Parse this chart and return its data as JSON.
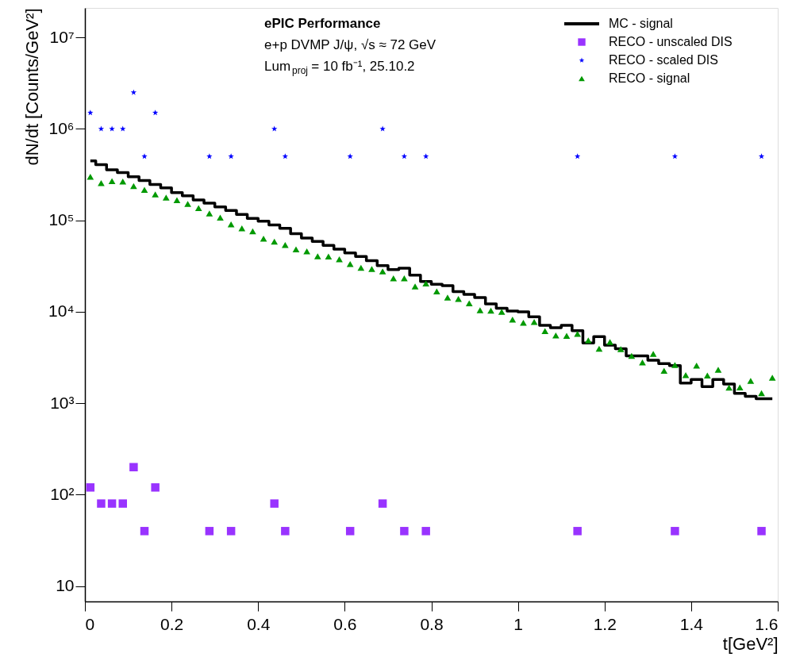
{
  "chart_data": {
    "type": "scatter",
    "xlabel": "t[GeV²]",
    "ylabel": "dN/dt [Counts/GeV²]",
    "annotations": [
      "ePIC Performance",
      "e+p DVMP J/ψ,   √s   ≈ 72 GeV",
      "Lum$_{proj}$ = 10 fb⁻¹, 25.10.2"
    ],
    "log": "y",
    "legend": "top right",
    "xlim": [
      0,
      1.6
    ],
    "xticks": [
      0,
      0.2,
      0.4,
      0.6,
      0.8,
      1,
      1.2,
      1.4,
      1.6
    ],
    "ylim": [
      6.8,
      21000000
    ],
    "yticks": [
      10,
      {
        "value": 100,
        "label": "10²"
      },
      {
        "value": 1000,
        "label": "10³"
      },
      {
        "value": 10000,
        "label": "10⁴"
      },
      {
        "value": 100000,
        "label": "10⁵"
      },
      {
        "value": 1000000,
        "label": "10⁶"
      },
      {
        "value": 10000000,
        "label": "10⁷"
      }
    ],
    "x": [
      0.0125,
      0.0375,
      0.0625,
      0.0875,
      0.1125,
      0.1375,
      0.1625,
      0.1875,
      0.2125,
      0.2375,
      0.2625,
      0.2875,
      0.3125,
      0.3375,
      0.3625,
      0.3875,
      0.4125,
      0.4375,
      0.4625,
      0.4875,
      0.5125,
      0.5375,
      0.5625,
      0.5875,
      0.6125,
      0.6375,
      0.6625,
      0.6875,
      0.7125,
      0.7375,
      0.7625,
      0.7875,
      0.8125,
      0.8375,
      0.8625,
      0.8875,
      0.9125,
      0.9375,
      0.9625,
      0.9875,
      1.0125,
      1.0375,
      1.0625,
      1.0875,
      1.1125,
      1.1375,
      1.1625,
      1.1875,
      1.2125,
      1.2375,
      1.2625,
      1.2875,
      1.3125,
      1.3375,
      1.3625,
      1.3875,
      1.4125,
      1.4375,
      1.4625,
      1.4875,
      1.5125,
      1.5375,
      1.5625,
      1.5875
    ],
    "series": [
      {
        "name": "MC - signal",
        "type": "step",
        "color": "#000000",
        "marker": "none",
        "line_style": "solid",
        "values": [
          447000,
          407000,
          356000,
          333000,
          299000,
          273000,
          247000,
          226000,
          201000,
          185000,
          167000,
          154000,
          140000,
          128000,
          116000,
          105000,
          97700,
          89100,
          81700,
          71600,
          64000,
          58900,
          53100,
          48300,
          44100,
          40200,
          36300,
          32000,
          28900,
          29900,
          25200,
          21400,
          20000,
          19300,
          16600,
          15500,
          14300,
          12200,
          10900,
          10200,
          10000,
          8790,
          7110,
          6700,
          7110,
          6220,
          4550,
          5350,
          4320,
          3950,
          3300,
          3300,
          2950,
          2710,
          2580,
          1660,
          1820,
          1520,
          1820,
          1620,
          1280,
          1190,
          1120,
          1120
        ]
      },
      {
        "name": "RECO - unscaled DIS",
        "type": "scatter",
        "color": "#9933ff",
        "marker": "square",
        "x": [
          0.0125,
          0.0375,
          0.0625,
          0.0875,
          0.1125,
          0.1375,
          0.1625,
          0.2875,
          0.3375,
          0.4375,
          0.4625,
          0.6125,
          0.6875,
          0.7375,
          0.7875,
          1.1375,
          1.3625,
          1.5625
        ],
        "values": [
          120,
          80,
          80,
          80,
          200,
          40,
          120,
          40,
          40,
          80,
          40,
          40,
          80,
          40,
          40,
          40,
          40,
          40
        ]
      },
      {
        "name": "RECO - scaled DIS",
        "type": "scatter",
        "color": "#0000ff",
        "marker": "star",
        "x": [
          0.0125,
          0.0375,
          0.0625,
          0.0875,
          0.1125,
          0.1375,
          0.1625,
          0.2875,
          0.3375,
          0.4375,
          0.4625,
          0.6125,
          0.6875,
          0.7375,
          0.7875,
          1.1375,
          1.3625,
          1.5625
        ],
        "values": [
          1500000,
          1000000,
          1000000,
          1000000,
          2500000,
          500000,
          1500000,
          500000,
          500000,
          1000000,
          500000,
          500000,
          1000000,
          500000,
          500000,
          500000,
          500000,
          500000
        ]
      },
      {
        "name": "RECO - signal",
        "type": "scatter",
        "color": "#009900",
        "marker": "triangle",
        "values": [
          299000,
          255000,
          268000,
          265000,
          237000,
          215000,
          192000,
          177000,
          166000,
          151000,
          136000,
          119000,
          107000,
          90400,
          81700,
          76000,
          63100,
          58600,
          53800,
          48100,
          45800,
          40400,
          40200,
          37500,
          33300,
          30300,
          29300,
          27600,
          23200,
          23200,
          18900,
          20400,
          16700,
          14300,
          13800,
          12400,
          10400,
          10300,
          10000,
          8220,
          7590,
          7740,
          6150,
          5520,
          5450,
          5740,
          4860,
          3950,
          4680,
          3910,
          3300,
          2800,
          3470,
          2260,
          2620,
          2030,
          2580,
          2010,
          2320,
          1480,
          1490,
          1760,
          1290,
          1900
        ]
      }
    ]
  }
}
